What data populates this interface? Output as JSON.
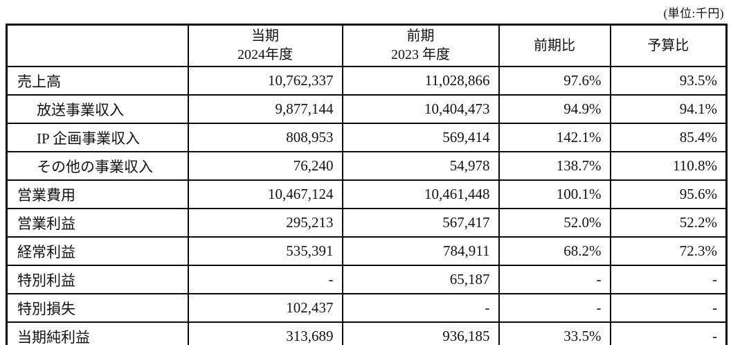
{
  "unit_note": "(単位:千円)",
  "table": {
    "columns": [
      {
        "key": "label",
        "line1": "",
        "line2": ""
      },
      {
        "key": "current",
        "line1": "当期",
        "line2": "2024年度"
      },
      {
        "key": "prior",
        "line1": "前期",
        "line2": "2023 年度"
      },
      {
        "key": "yoy",
        "line1": "前期比",
        "line2": ""
      },
      {
        "key": "vs_budget",
        "line1": "予算比",
        "line2": ""
      }
    ],
    "rows": [
      {
        "label": "売上高",
        "indent": false,
        "current": "10,762,337",
        "prior": "11,028,866",
        "yoy": "97.6%",
        "vs_budget": "93.5%"
      },
      {
        "label": "放送事業収入",
        "indent": true,
        "current": "9,877,144",
        "prior": "10,404,473",
        "yoy": "94.9%",
        "vs_budget": "94.1%"
      },
      {
        "label": "IP 企画事業収入",
        "indent": true,
        "current": "808,953",
        "prior": "569,414",
        "yoy": "142.1%",
        "vs_budget": "85.4%"
      },
      {
        "label": "その他の事業収入",
        "indent": true,
        "current": "76,240",
        "prior": "54,978",
        "yoy": "138.7%",
        "vs_budget": "110.8%"
      },
      {
        "label": "営業費用",
        "indent": false,
        "current": "10,467,124",
        "prior": "10,461,448",
        "yoy": "100.1%",
        "vs_budget": "95.6%"
      },
      {
        "label": "営業利益",
        "indent": false,
        "current": "295,213",
        "prior": "567,417",
        "yoy": "52.0%",
        "vs_budget": "52.2%"
      },
      {
        "label": "経常利益",
        "indent": false,
        "current": "535,391",
        "prior": "784,911",
        "yoy": "68.2%",
        "vs_budget": "72.3%"
      },
      {
        "label": "特別利益",
        "indent": false,
        "current": "-",
        "prior": "65,187",
        "yoy": "-",
        "vs_budget": "-"
      },
      {
        "label": "特別損失",
        "indent": false,
        "current": "102,437",
        "prior": "-",
        "yoy": "-",
        "vs_budget": "-"
      },
      {
        "label": "当期純利益",
        "indent": false,
        "current": "313,689",
        "prior": "936,185",
        "yoy": "33.5%",
        "vs_budget": "-"
      }
    ]
  }
}
